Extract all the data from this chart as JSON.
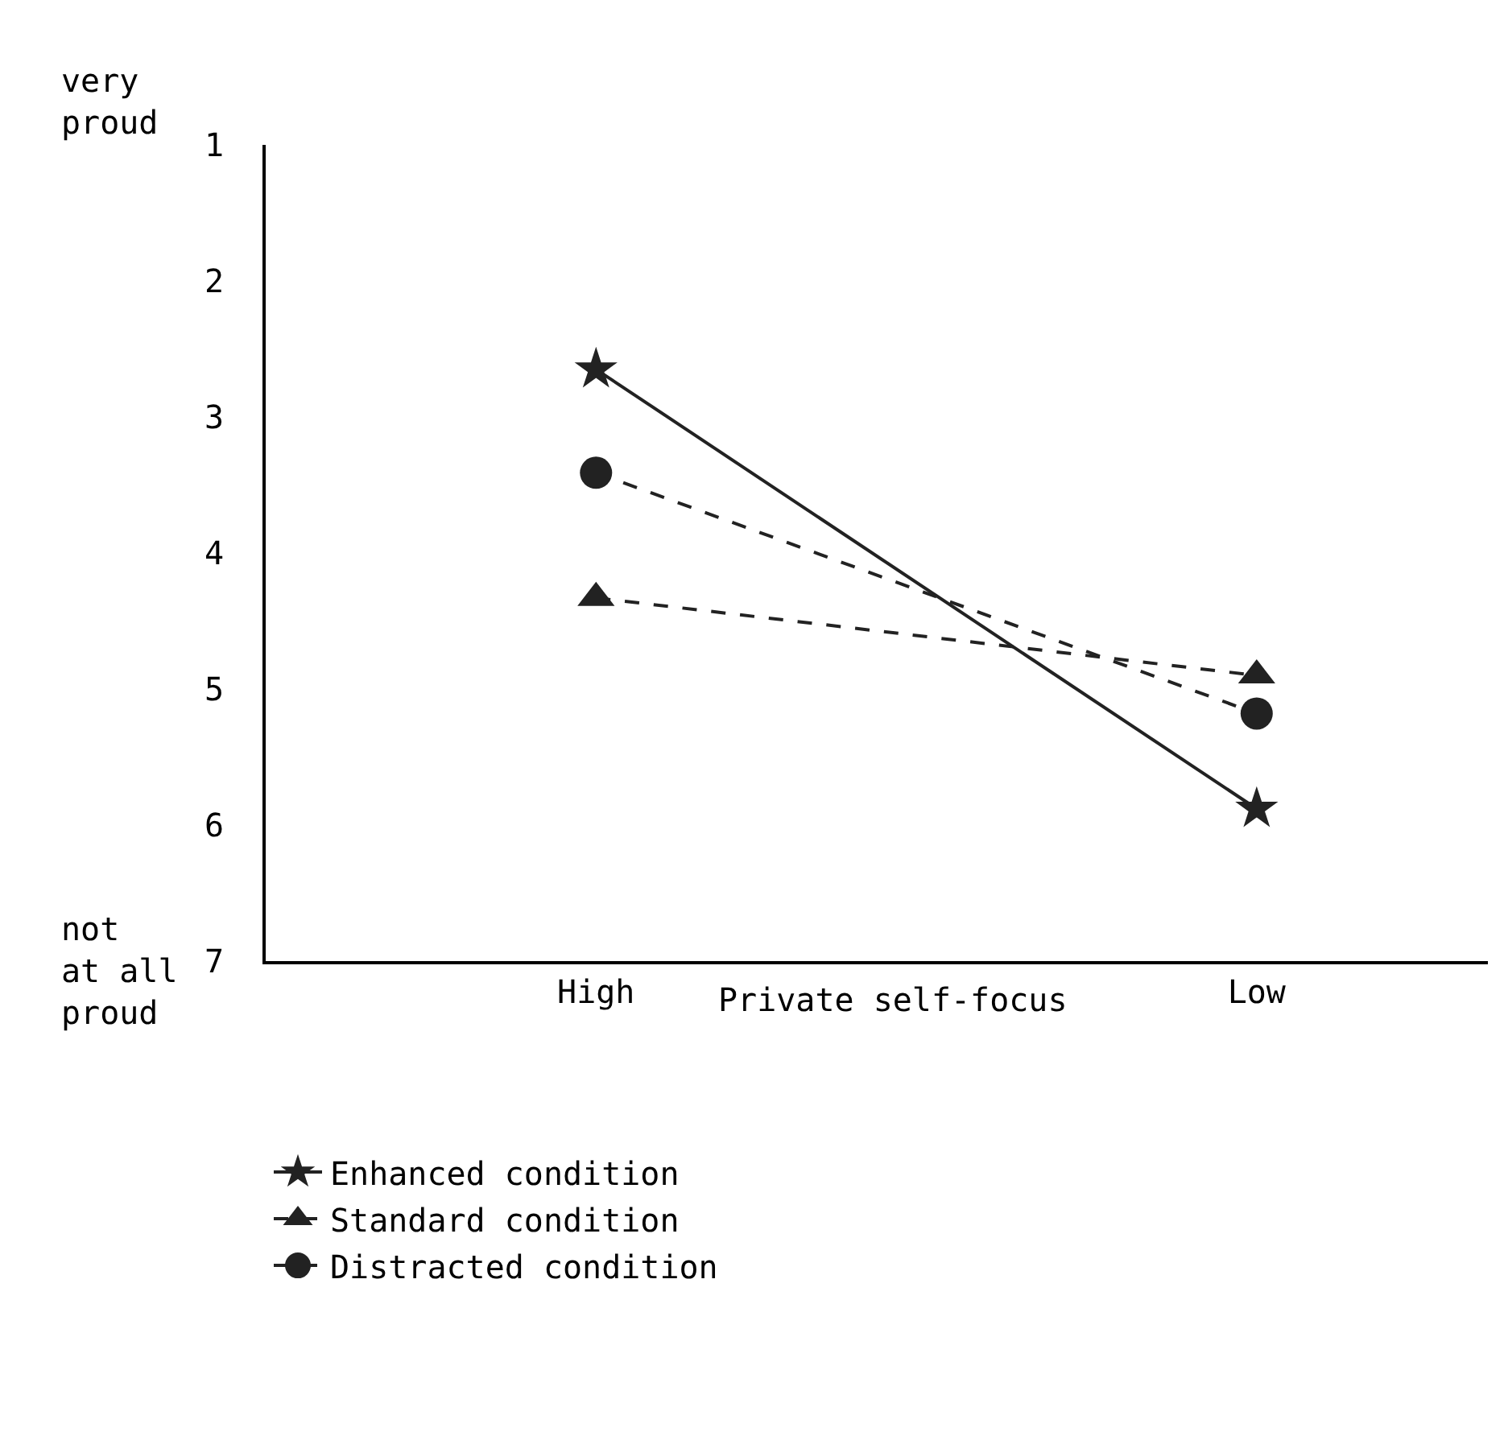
{
  "chart_data": {
    "type": "line",
    "xlabel": "Private self-focus",
    "categories": [
      "High",
      "Low"
    ],
    "series": [
      {
        "name": "Enhanced condition",
        "color": "#222222",
        "values": [
          2.65,
          5.88
        ],
        "marker": "star",
        "line_style": "solid"
      },
      {
        "name": "Standard condition",
        "color": "#222222",
        "values": [
          4.33,
          4.9
        ],
        "marker": "triangle",
        "line_style": "dashed"
      },
      {
        "name": "Distracted condition",
        "color": "#222222",
        "values": [
          3.41,
          5.18
        ],
        "marker": "circle",
        "line_style": "dashed"
      }
    ],
    "ylim": [
      7,
      1
    ],
    "yticks": [
      1,
      2,
      3,
      4,
      5,
      6,
      7
    ],
    "annotations": [
      "very\nproud",
      "not\nat all\nproud"
    ],
    "legend": "bottom"
  }
}
